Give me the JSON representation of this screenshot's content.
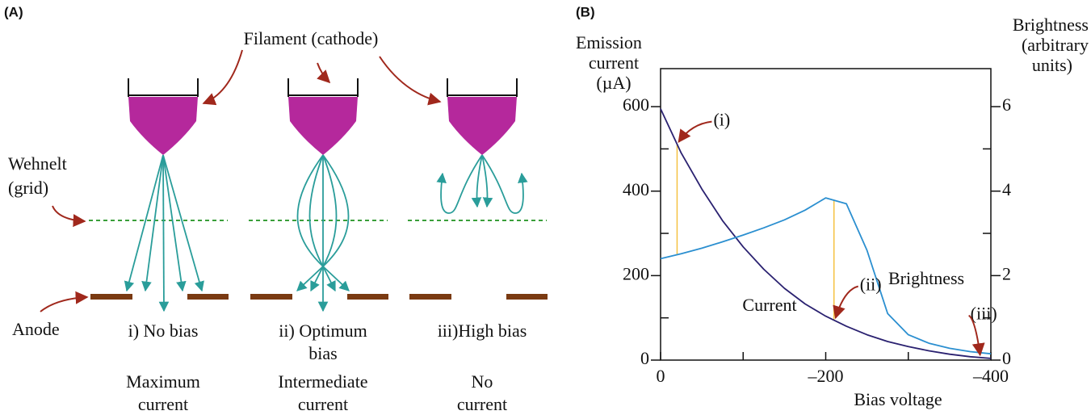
{
  "panel_a": {
    "label": "(A)",
    "filament_label": "Filament (cathode)",
    "wehnelt_label": [
      "Wehnelt",
      "(grid)"
    ],
    "anode_label": "Anode",
    "columns": [
      {
        "bias": [
          "i) No bias"
        ],
        "current": [
          "Maximum",
          "current"
        ]
      },
      {
        "bias": [
          "ii) Optimum",
          "bias"
        ],
        "current": [
          "Intermediate",
          "current"
        ]
      },
      {
        "bias": [
          "iii)High bias"
        ],
        "current": [
          "No",
          "current"
        ]
      }
    ]
  },
  "chart_data": {
    "type": "line",
    "label": "(B)",
    "y_label": [
      "Emission",
      "current",
      "(µA)"
    ],
    "y2_label": [
      "Brightness",
      "(arbitrary",
      "units)"
    ],
    "x_label": "Bias voltage",
    "x": [
      0,
      -25,
      -50,
      -75,
      -100,
      -125,
      -150,
      -175,
      -200,
      -225,
      -250,
      -275,
      -300,
      -325,
      -350,
      -375,
      -400
    ],
    "series": [
      {
        "name": "Current",
        "color": "#2a2170",
        "values": [
          595,
          490,
          405,
          330,
          268,
          215,
          170,
          133,
          104,
          80,
          60,
          44,
          32,
          22,
          14,
          8,
          4
        ]
      },
      {
        "name": "Brightness",
        "color": "#2b8fd0",
        "axis": "y2",
        "values": [
          2.4,
          2.52,
          2.65,
          2.8,
          2.96,
          3.13,
          3.32,
          3.55,
          3.84,
          3.7,
          2.6,
          1.1,
          0.6,
          0.4,
          0.28,
          0.2,
          0.15
        ]
      }
    ],
    "xlim": [
      0,
      -400
    ],
    "xticks": [
      0,
      {
        "value": -200,
        "label": "–200"
      },
      {
        "value": -400,
        "label": "–400"
      }
    ],
    "xminor_ticks": [
      -100,
      -300
    ],
    "ylim": [
      0,
      690
    ],
    "yticks": [
      0,
      200,
      400,
      600
    ],
    "yminor_ticks": [
      100,
      300,
      500
    ],
    "y2lim": [
      0,
      6.9
    ],
    "y2ticks": [
      0,
      2,
      4,
      6
    ],
    "y2minor_ticks": [
      1,
      3,
      5
    ],
    "markers": [
      {
        "label": "(i)",
        "x": -20,
        "guide": true
      },
      {
        "label": "(ii)",
        "x": -210,
        "guide": true
      },
      {
        "label": "(iii)",
        "x": -385,
        "guide": false
      }
    ],
    "guide_color": "#f5c242"
  }
}
